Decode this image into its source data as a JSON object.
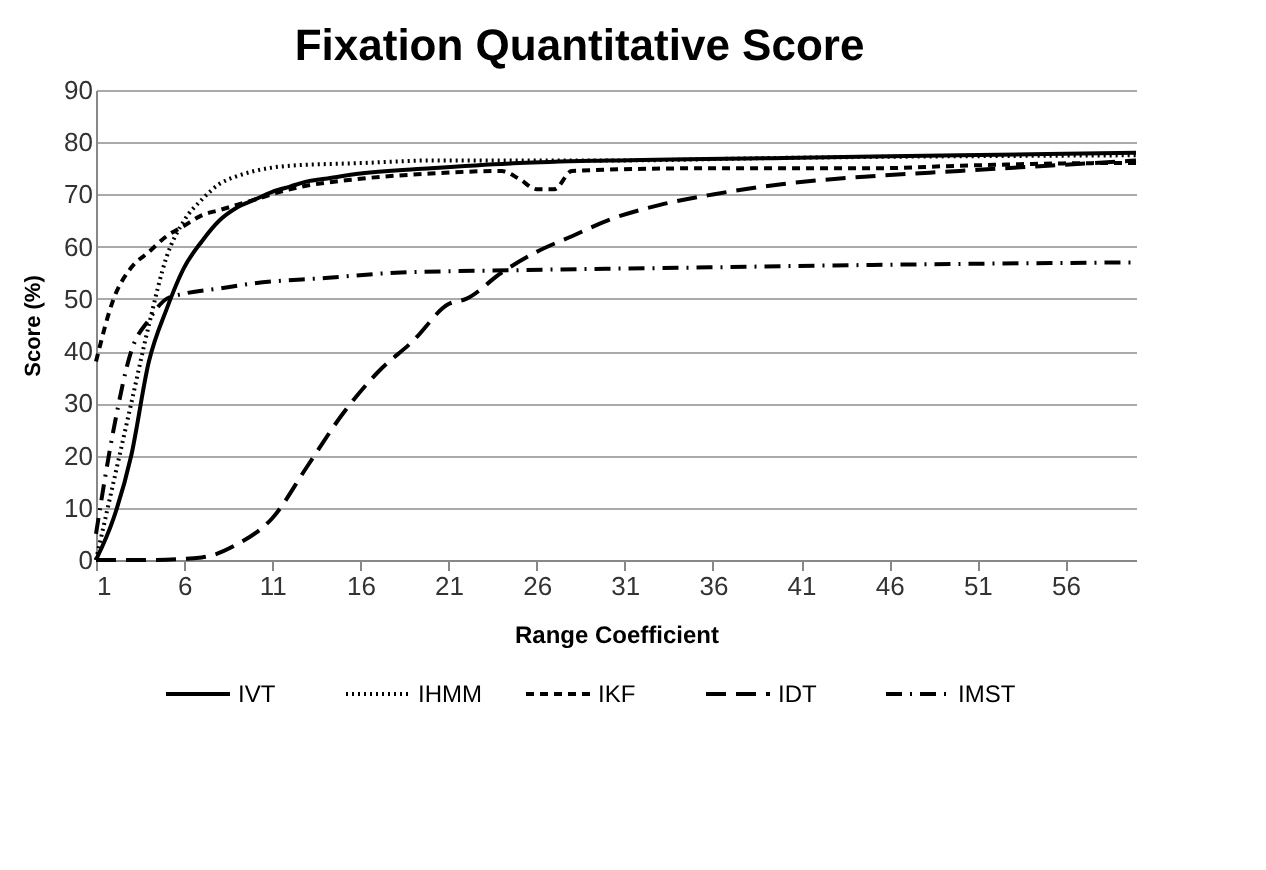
{
  "chart_data": {
    "type": "line",
    "title": "Fixation Quantitative Score",
    "xlabel": "Range Coefficient",
    "ylabel": "Score (%)",
    "xlim": [
      1,
      60
    ],
    "xticks": [
      1,
      6,
      11,
      16,
      21,
      26,
      31,
      36,
      41,
      46,
      51,
      56
    ],
    "ylim": [
      0,
      90
    ],
    "yticks": [
      0,
      10,
      20,
      30,
      40,
      50,
      60,
      70,
      80,
      90
    ],
    "grid": "y",
    "legend": "bottom",
    "marker": "none",
    "series": [
      {
        "name": "IVT",
        "color": "#000000",
        "line_style": "solid",
        "x": [
          1,
          2,
          3,
          4,
          5,
          6,
          7,
          8,
          9,
          10,
          11,
          12,
          13,
          14,
          16,
          20,
          25,
          30,
          40,
          50,
          60
        ],
        "values": [
          0,
          8,
          20,
          38,
          48,
          56,
          61,
          65,
          67.5,
          69,
          70.5,
          71.5,
          72.5,
          73,
          74,
          75,
          76,
          76.5,
          77,
          77.5,
          78
        ]
      },
      {
        "name": "IHMM",
        "color": "#000000",
        "line_style": "dotted",
        "x": [
          1,
          2,
          3,
          4,
          5,
          6,
          7,
          8,
          9,
          10,
          12,
          16,
          20,
          30,
          40,
          60
        ],
        "values": [
          0,
          15,
          30,
          45,
          58,
          65,
          69,
          72,
          73.5,
          74.5,
          75.5,
          76,
          76.5,
          76.5,
          77,
          77.5
        ]
      },
      {
        "name": "IKF",
        "color": "#000000",
        "line_style": "dashed",
        "x": [
          1,
          2,
          3,
          4,
          5,
          6,
          7,
          8,
          10,
          12,
          16,
          20,
          24,
          25,
          26,
          27,
          28,
          35,
          45,
          50,
          58,
          60
        ],
        "values": [
          38,
          50,
          56,
          59,
          62,
          64,
          66,
          67,
          69,
          71,
          73,
          74,
          74.5,
          73,
          71,
          71,
          74.5,
          75,
          75,
          75.5,
          76,
          76
        ]
      },
      {
        "name": "IDT",
        "color": "#000000",
        "line_style": "longdash",
        "x": [
          1,
          4,
          7,
          9,
          11,
          13,
          15,
          17,
          19,
          21,
          22,
          24,
          26,
          28,
          30,
          33,
          36,
          40,
          45,
          50,
          55,
          60
        ],
        "values": [
          0,
          0,
          0.5,
          3,
          8,
          18,
          28,
          36,
          42,
          49,
          50,
          55,
          59,
          62,
          65,
          68,
          70,
          72,
          73.5,
          74.5,
          75.5,
          76.5
        ]
      },
      {
        "name": "IMST",
        "color": "#000000",
        "line_style": "dashdot",
        "x": [
          1,
          2,
          3,
          4,
          5,
          6,
          8,
          10,
          14,
          18,
          25,
          35,
          45,
          60
        ],
        "values": [
          5,
          25,
          40,
          46,
          50,
          51,
          52,
          53,
          54,
          55,
          55.5,
          56,
          56.5,
          57
        ]
      }
    ]
  }
}
